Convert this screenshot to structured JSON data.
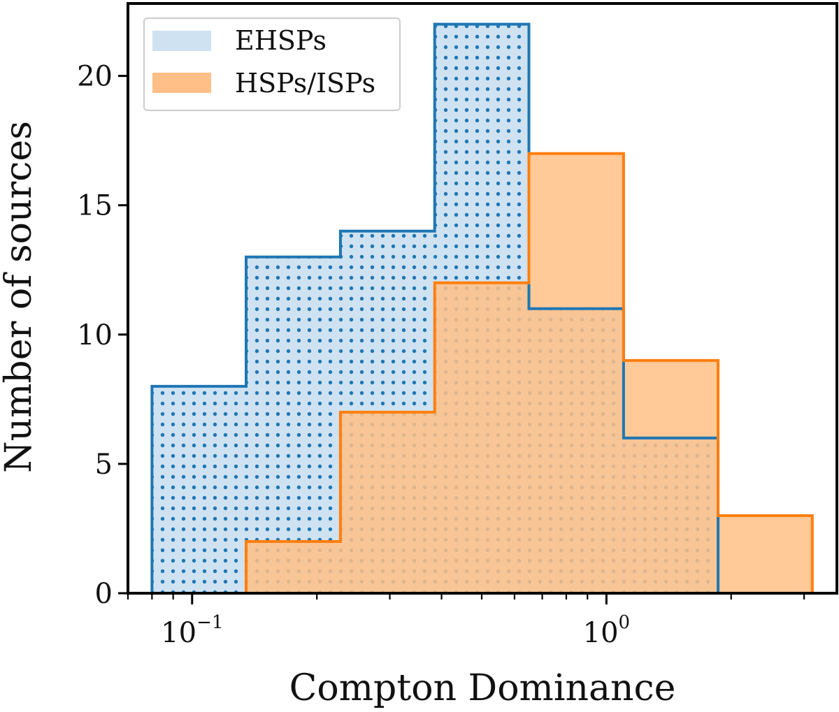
{
  "chart_data": {
    "type": "bar",
    "xlabel": "Compton Dominance",
    "ylabel": "Number of sources",
    "xscale": "log",
    "xlim": [
      0.07,
      3.6
    ],
    "ylim": [
      0,
      22.8
    ],
    "yticks": [
      0,
      5,
      10,
      15,
      20
    ],
    "xticks": [
      {
        "value": 0.1,
        "base": "10",
        "exponent": "−1"
      },
      {
        "value": 1.0,
        "base": "10",
        "exponent": "0"
      }
    ],
    "legend_position": "top-left",
    "series": [
      {
        "name": "EHSPs",
        "color": "#1f77b4",
        "fill": "#cfe2f1",
        "hatch": "dots",
        "bin_edges": [
          0.08,
          0.135,
          0.228,
          0.385,
          0.65,
          1.1,
          1.86
        ],
        "counts": [
          8,
          13,
          14,
          22,
          11,
          6
        ]
      },
      {
        "name": "HSPs/ISPs",
        "color": "#ff7f0e",
        "fill": "#ffbf86",
        "hatch": "none",
        "bin_edges": [
          0.135,
          0.228,
          0.385,
          0.65,
          1.1,
          1.86,
          3.14
        ],
        "counts": [
          2,
          7,
          12,
          17,
          9,
          3
        ]
      }
    ]
  }
}
